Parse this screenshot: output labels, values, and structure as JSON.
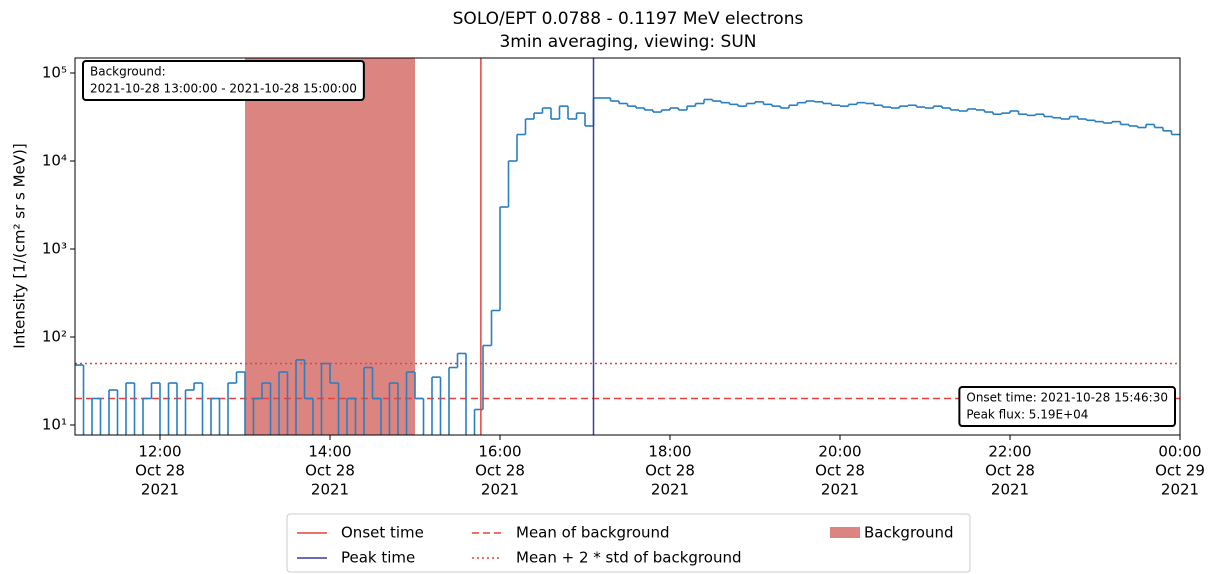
{
  "chart_data": {
    "type": "step",
    "title": "SOLO/EPT 0.0788 - 0.1197 MeV electrons",
    "subtitle": "3min averaging, viewing: SUN",
    "y_label": "Intensity [1/(cm² sr s MeV)]",
    "y_scale": "log",
    "xlim": [
      "2021-10-28 11:00",
      "2021-10-29 00:00"
    ],
    "ylim": [
      7.7,
      148000
    ],
    "yticks": [
      {
        "value": 10,
        "label": "10¹"
      },
      {
        "value": 100,
        "label": "10²"
      },
      {
        "value": 1000,
        "label": "10³"
      },
      {
        "value": 10000,
        "label": "10⁴"
      },
      {
        "value": 100000,
        "label": "10⁵"
      }
    ],
    "xticks": [
      {
        "value": "2021-10-28 12:00",
        "label": [
          "12:00",
          "Oct 28",
          "2021"
        ]
      },
      {
        "value": "2021-10-28 14:00",
        "label": [
          "14:00",
          "Oct 28",
          "2021"
        ]
      },
      {
        "value": "2021-10-28 16:00",
        "label": [
          "16:00",
          "Oct 28",
          "2021"
        ]
      },
      {
        "value": "2021-10-28 18:00",
        "label": [
          "18:00",
          "Oct 28",
          "2021"
        ]
      },
      {
        "value": "2021-10-28 20:00",
        "label": [
          "20:00",
          "Oct 28",
          "2021"
        ]
      },
      {
        "value": "2021-10-28 22:00",
        "label": [
          "22:00",
          "Oct 28",
          "2021"
        ]
      },
      {
        "value": "2021-10-29 00:00",
        "label": [
          "00:00",
          "Oct 29",
          "2021"
        ]
      }
    ],
    "spans": [
      {
        "name": "Background",
        "start": "2021-10-28 13:00",
        "end": "2021-10-28 15:00",
        "color": "#dc8480"
      }
    ],
    "markers": [
      {
        "name": "Onset time",
        "x": "2021-10-28 15:46:30",
        "color": "#e8413c"
      },
      {
        "name": "Peak time",
        "x": "2021-10-28 17:06",
        "color": "#3c3c9c"
      }
    ],
    "hlines": [
      {
        "name": "Mean of background",
        "value": 20,
        "color": "#e8413c",
        "dash": "dashed"
      },
      {
        "name": "Mean + 2 * std of background",
        "value": 50,
        "color": "#e8413c",
        "dash": "dotted"
      }
    ],
    "annotations": [
      [
        "Background:",
        "2021-10-28 13:00:00 - 2021-10-28 15:00:00"
      ],
      [
        "Onset time: 2021-10-28 15:46:30",
        "Peak flux: 5.19E+04"
      ]
    ],
    "series": [
      {
        "color": "#2a7fbf",
        "x": [
          "2021-10-28 11:00",
          "2021-10-28 11:06",
          "2021-10-28 11:12",
          "2021-10-28 11:18",
          "2021-10-28 11:24",
          "2021-10-28 11:30",
          "2021-10-28 11:36",
          "2021-10-28 11:42",
          "2021-10-28 11:48",
          "2021-10-28 11:54",
          "2021-10-28 12:00",
          "2021-10-28 12:06",
          "2021-10-28 12:12",
          "2021-10-28 12:18",
          "2021-10-28 12:24",
          "2021-10-28 12:30",
          "2021-10-28 12:36",
          "2021-10-28 12:42",
          "2021-10-28 12:48",
          "2021-10-28 12:54",
          "2021-10-28 13:00",
          "2021-10-28 13:06",
          "2021-10-28 13:12",
          "2021-10-28 13:18",
          "2021-10-28 13:24",
          "2021-10-28 13:30",
          "2021-10-28 13:36",
          "2021-10-28 13:42",
          "2021-10-28 13:48",
          "2021-10-28 13:54",
          "2021-10-28 14:00",
          "2021-10-28 14:06",
          "2021-10-28 14:12",
          "2021-10-28 14:18",
          "2021-10-28 14:24",
          "2021-10-28 14:30",
          "2021-10-28 14:36",
          "2021-10-28 14:42",
          "2021-10-28 14:48",
          "2021-10-28 14:54",
          "2021-10-28 15:00",
          "2021-10-28 15:06",
          "2021-10-28 15:12",
          "2021-10-28 15:18",
          "2021-10-28 15:24",
          "2021-10-28 15:30",
          "2021-10-28 15:36",
          "2021-10-28 15:42",
          "2021-10-28 15:48",
          "2021-10-28 15:54",
          "2021-10-28 16:00",
          "2021-10-28 16:06",
          "2021-10-28 16:12",
          "2021-10-28 16:18",
          "2021-10-28 16:24",
          "2021-10-28 16:30",
          "2021-10-28 16:36",
          "2021-10-28 16:42",
          "2021-10-28 16:48",
          "2021-10-28 16:54",
          "2021-10-28 17:00",
          "2021-10-28 17:06",
          "2021-10-28 17:12",
          "2021-10-28 17:18",
          "2021-10-28 17:24",
          "2021-10-28 17:30",
          "2021-10-28 17:36",
          "2021-10-28 17:42",
          "2021-10-28 17:48",
          "2021-10-28 17:54",
          "2021-10-28 18:00",
          "2021-10-28 18:06",
          "2021-10-28 18:12",
          "2021-10-28 18:18",
          "2021-10-28 18:24",
          "2021-10-28 18:30",
          "2021-10-28 18:36",
          "2021-10-28 18:42",
          "2021-10-28 18:48",
          "2021-10-28 18:54",
          "2021-10-28 19:00",
          "2021-10-28 19:06",
          "2021-10-28 19:12",
          "2021-10-28 19:18",
          "2021-10-28 19:24",
          "2021-10-28 19:30",
          "2021-10-28 19:36",
          "2021-10-28 19:42",
          "2021-10-28 19:48",
          "2021-10-28 19:54",
          "2021-10-28 20:00",
          "2021-10-28 20:06",
          "2021-10-28 20:12",
          "2021-10-28 20:18",
          "2021-10-28 20:24",
          "2021-10-28 20:30",
          "2021-10-28 20:36",
          "2021-10-28 20:42",
          "2021-10-28 20:48",
          "2021-10-28 20:54",
          "2021-10-28 21:00",
          "2021-10-28 21:06",
          "2021-10-28 21:12",
          "2021-10-28 21:18",
          "2021-10-28 21:24",
          "2021-10-28 21:30",
          "2021-10-28 21:36",
          "2021-10-28 21:42",
          "2021-10-28 21:48",
          "2021-10-28 21:54",
          "2021-10-28 22:00",
          "2021-10-28 22:06",
          "2021-10-28 22:12",
          "2021-10-28 22:18",
          "2021-10-28 22:24",
          "2021-10-28 22:30",
          "2021-10-28 22:36",
          "2021-10-28 22:42",
          "2021-10-28 22:48",
          "2021-10-28 22:54",
          "2021-10-28 23:00",
          "2021-10-28 23:06",
          "2021-10-28 23:12",
          "2021-10-28 23:18",
          "2021-10-28 23:24",
          "2021-10-28 23:30",
          "2021-10-28 23:36",
          "2021-10-28 23:42",
          "2021-10-28 23:48",
          "2021-10-28 23:54"
        ],
        "values": [
          48,
          0,
          20,
          0,
          25,
          0,
          30,
          0,
          20,
          30,
          0,
          30,
          0,
          25,
          30,
          0,
          20,
          0,
          30,
          40,
          0,
          20,
          30,
          0,
          40,
          0,
          55,
          20,
          0,
          50,
          30,
          0,
          20,
          0,
          45,
          20,
          0,
          30,
          0,
          40,
          20,
          0,
          35,
          0,
          45,
          65,
          0,
          15,
          80,
          200,
          3000,
          10000,
          20000,
          30000,
          35000,
          40000,
          30000,
          42000,
          30000,
          35000,
          25000,
          52000,
          52000,
          48000,
          45000,
          42000,
          40000,
          38000,
          36000,
          38000,
          40000,
          38000,
          42000,
          45000,
          50000,
          48000,
          46000,
          44000,
          42000,
          45000,
          47000,
          44000,
          42000,
          40000,
          43000,
          46000,
          48000,
          47000,
          45000,
          43000,
          42000,
          44000,
          46000,
          45000,
          43000,
          41000,
          40000,
          42000,
          43000,
          41000,
          40000,
          42000,
          40000,
          38000,
          37000,
          39000,
          38000,
          36000,
          34000,
          35000,
          37000,
          34000,
          33000,
          34000,
          32000,
          31000,
          30000,
          32000,
          30000,
          29000,
          28000,
          27000,
          28000,
          26000,
          25000,
          24000,
          26000,
          24000,
          22000,
          20000
        ]
      }
    ]
  }
}
